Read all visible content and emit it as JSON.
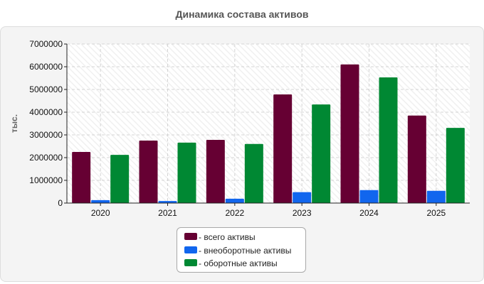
{
  "chart_data": {
    "type": "bar",
    "title": "Динамика состава активов",
    "ylabel": "тыс.",
    "xlabel": "",
    "ylim": [
      0,
      7000000
    ],
    "yticks": [
      0,
      1000000,
      2000000,
      3000000,
      4000000,
      5000000,
      6000000,
      7000000
    ],
    "categories": [
      "2020",
      "2021",
      "2022",
      "2023",
      "2024",
      "2025"
    ],
    "grid": true,
    "legend_position": "bottom",
    "series": [
      {
        "name": "- всего активы",
        "color": "#660033",
        "values": [
          2250000,
          2750000,
          2780000,
          4780000,
          6100000,
          3850000
        ]
      },
      {
        "name": "- внеоборотные активы",
        "color": "#1166ee",
        "values": [
          130000,
          90000,
          190000,
          480000,
          570000,
          540000
        ]
      },
      {
        "name": "- оборотные активы",
        "color": "#008833",
        "values": [
          2120000,
          2660000,
          2600000,
          4340000,
          5530000,
          3310000
        ]
      }
    ]
  }
}
